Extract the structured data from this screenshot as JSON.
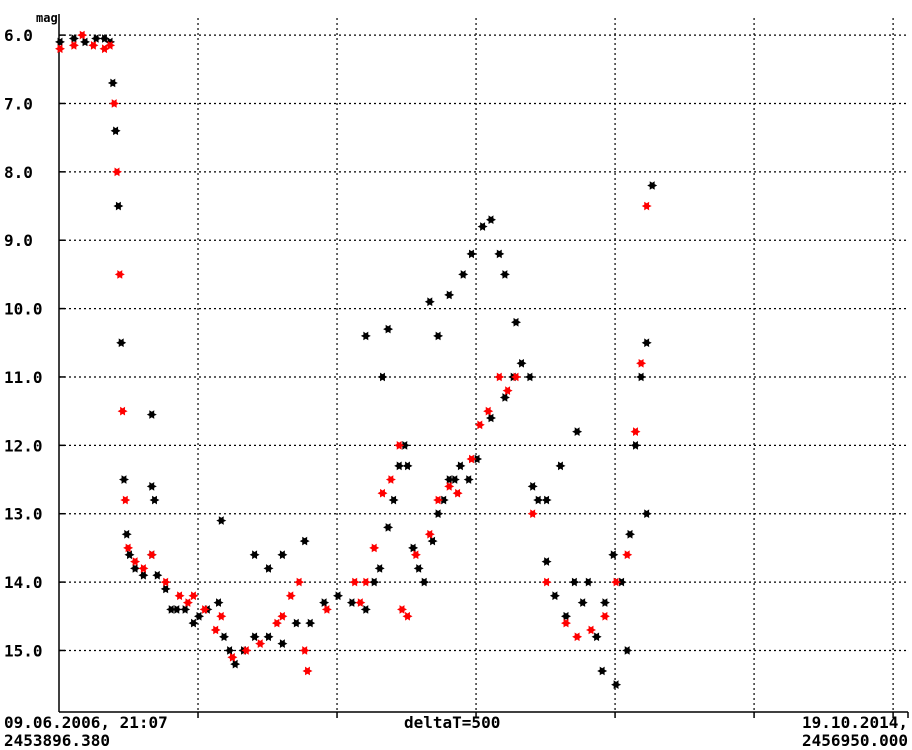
{
  "chart_data": {
    "type": "scatter",
    "title": "",
    "ylabel": "mag",
    "y_inverted": true,
    "ylim": [
      5.75,
      15.9
    ],
    "xlim": [
      2453896.38,
      2456950.0
    ],
    "yticks": [
      "6.0",
      "7.0",
      "8.0",
      "9.0",
      "10.0",
      "11.0",
      "12.0",
      "13.0",
      "14.0",
      "15.0"
    ],
    "x_start_label": "09.06.2006, 21:07",
    "x_start_jd": "2453896.380",
    "x_end_label": "19.10.2014,",
    "x_end_jd": "2456950.000",
    "x_center_label": "deltaT=500",
    "grid": true,
    "grid_style": "dotted",
    "series": [
      {
        "color": "#000000",
        "points": [
          [
            2453900,
            6.1
          ],
          [
            2453950,
            6.05
          ],
          [
            2453990,
            6.1
          ],
          [
            2454030,
            6.05
          ],
          [
            2454060,
            6.05
          ],
          [
            2454080,
            6.1
          ],
          [
            2454090,
            6.7
          ],
          [
            2454100,
            7.4
          ],
          [
            2454110,
            8.5
          ],
          [
            2454120,
            10.5
          ],
          [
            2454130,
            12.5
          ],
          [
            2454140,
            13.3
          ],
          [
            2454150,
            13.6
          ],
          [
            2454170,
            13.8
          ],
          [
            2454200,
            13.9
          ],
          [
            2454230,
            13.6
          ],
          [
            2454250,
            13.9
          ],
          [
            2454280,
            14.1
          ],
          [
            2454300,
            14.4
          ],
          [
            2454320,
            14.4
          ],
          [
            2454350,
            14.4
          ],
          [
            2454380,
            14.6
          ],
          [
            2454400,
            14.5
          ],
          [
            2454430,
            14.4
          ],
          [
            2454470,
            14.3
          ],
          [
            2454490,
            14.8
          ],
          [
            2454510,
            15.0
          ],
          [
            2454530,
            15.2
          ],
          [
            2454560,
            15.0
          ],
          [
            2454600,
            14.8
          ],
          [
            2454650,
            14.8
          ],
          [
            2454700,
            14.9
          ],
          [
            2454750,
            14.6
          ],
          [
            2454800,
            14.6
          ],
          [
            2454850,
            14.3
          ],
          [
            2454900,
            14.2
          ],
          [
            2454950,
            14.3
          ],
          [
            2455000,
            14.4
          ],
          [
            2455030,
            14.0
          ],
          [
            2455050,
            13.8
          ],
          [
            2455080,
            13.2
          ],
          [
            2455100,
            12.8
          ],
          [
            2455120,
            12.3
          ],
          [
            2455140,
            12.0
          ],
          [
            2455150,
            12.3
          ],
          [
            2455170,
            13.5
          ],
          [
            2455190,
            13.8
          ],
          [
            2455210,
            14.0
          ],
          [
            2455240,
            13.4
          ],
          [
            2455260,
            13.0
          ],
          [
            2455280,
            12.8
          ],
          [
            2455300,
            12.5
          ],
          [
            2455320,
            12.5
          ],
          [
            2455340,
            12.3
          ],
          [
            2455370,
            12.5
          ],
          [
            2455400,
            12.2
          ],
          [
            2455450,
            11.6
          ],
          [
            2455500,
            11.3
          ],
          [
            2455530,
            11.0
          ],
          [
            2455560,
            10.8
          ],
          [
            2455590,
            11.0
          ],
          [
            2455620,
            12.8
          ],
          [
            2455650,
            13.7
          ],
          [
            2455680,
            14.2
          ],
          [
            2455720,
            14.5
          ],
          [
            2455750,
            14.0
          ],
          [
            2455780,
            14.3
          ],
          [
            2455800,
            14.0
          ],
          [
            2455830,
            14.8
          ],
          [
            2455860,
            14.3
          ],
          [
            2455890,
            13.6
          ],
          [
            2455920,
            14.0
          ],
          [
            2455950,
            13.3
          ],
          [
            2455970,
            12.0
          ],
          [
            2455990,
            11.0
          ],
          [
            2456010,
            10.5
          ],
          [
            2454230,
            11.55
          ],
          [
            2454230,
            12.6
          ],
          [
            2454240,
            12.8
          ],
          [
            2454480,
            13.1
          ],
          [
            2454600,
            13.6
          ],
          [
            2454650,
            13.8
          ],
          [
            2454700,
            13.6
          ],
          [
            2454780,
            13.4
          ],
          [
            2455000,
            10.4
          ],
          [
            2455060,
            11.0
          ],
          [
            2455080,
            10.3
          ],
          [
            2455230,
            9.9
          ],
          [
            2455260,
            10.4
          ],
          [
            2455300,
            9.8
          ],
          [
            2455350,
            9.5
          ],
          [
            2455380,
            9.2
          ],
          [
            2455420,
            8.8
          ],
          [
            2455450,
            8.7
          ],
          [
            2455480,
            9.2
          ],
          [
            2455500,
            9.5
          ],
          [
            2455540,
            10.2
          ],
          [
            2455600,
            12.6
          ],
          [
            2455650,
            12.8
          ],
          [
            2455700,
            12.3
          ],
          [
            2455760,
            11.8
          ],
          [
            2455850,
            15.3
          ],
          [
            2455900,
            15.5
          ],
          [
            2455940,
            15.0
          ],
          [
            2456010,
            13.0
          ],
          [
            2456030,
            8.2
          ]
        ]
      },
      {
        "color": "#ff0000",
        "points": [
          [
            2453900,
            6.2
          ],
          [
            2453950,
            6.15
          ],
          [
            2453980,
            6.0
          ],
          [
            2454020,
            6.15
          ],
          [
            2454060,
            6.2
          ],
          [
            2454080,
            6.15
          ],
          [
            2454095,
            7.0
          ],
          [
            2454105,
            8.0
          ],
          [
            2454115,
            9.5
          ],
          [
            2454125,
            11.5
          ],
          [
            2454135,
            12.8
          ],
          [
            2454145,
            13.5
          ],
          [
            2454170,
            13.7
          ],
          [
            2454200,
            13.8
          ],
          [
            2454230,
            13.6
          ],
          [
            2454280,
            14.0
          ],
          [
            2454330,
            14.2
          ],
          [
            2454360,
            14.3
          ],
          [
            2454380,
            14.2
          ],
          [
            2454420,
            14.4
          ],
          [
            2454460,
            14.7
          ],
          [
            2454480,
            14.5
          ],
          [
            2454520,
            15.1
          ],
          [
            2454570,
            15.0
          ],
          [
            2454620,
            14.9
          ],
          [
            2454680,
            14.6
          ],
          [
            2454700,
            14.5
          ],
          [
            2454730,
            14.2
          ],
          [
            2454760,
            14.0
          ],
          [
            2454780,
            15.0
          ],
          [
            2454790,
            15.3
          ],
          [
            2454860,
            14.4
          ],
          [
            2454960,
            14.0
          ],
          [
            2454980,
            14.3
          ],
          [
            2455000,
            14.0
          ],
          [
            2455030,
            13.5
          ],
          [
            2455060,
            12.7
          ],
          [
            2455090,
            12.5
          ],
          [
            2455120,
            12.0
          ],
          [
            2455130,
            14.4
          ],
          [
            2455150,
            14.5
          ],
          [
            2455180,
            13.6
          ],
          [
            2455230,
            13.3
          ],
          [
            2455260,
            12.8
          ],
          [
            2455300,
            12.6
          ],
          [
            2455330,
            12.7
          ],
          [
            2455380,
            12.2
          ],
          [
            2455410,
            11.7
          ],
          [
            2455440,
            11.5
          ],
          [
            2455480,
            11.0
          ],
          [
            2455510,
            11.2
          ],
          [
            2455540,
            11.0
          ],
          [
            2455600,
            13.0
          ],
          [
            2455650,
            14.0
          ],
          [
            2455720,
            14.6
          ],
          [
            2455760,
            14.8
          ],
          [
            2455810,
            14.7
          ],
          [
            2455860,
            14.5
          ],
          [
            2455900,
            14.0
          ],
          [
            2455940,
            13.6
          ],
          [
            2455970,
            11.8
          ],
          [
            2455990,
            10.8
          ],
          [
            2456010,
            8.5
          ]
        ]
      }
    ]
  }
}
